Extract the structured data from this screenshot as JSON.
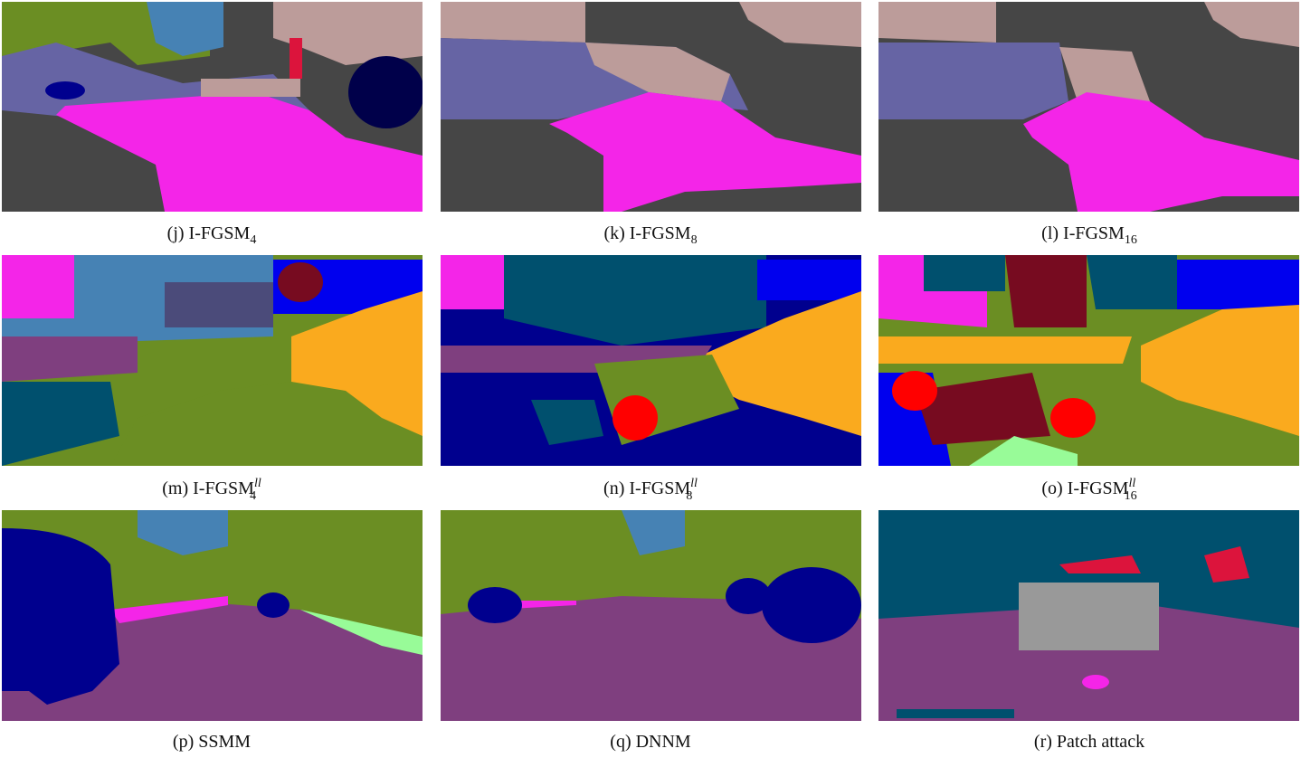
{
  "figure": {
    "panels": [
      {
        "label": "(j) I-FGSM",
        "sub": "4"
      },
      {
        "label": "(k) I-FGSM",
        "sub": "8"
      },
      {
        "label": "(l) I-FGSM",
        "sub": "16"
      },
      {
        "label": "(m) I-FGSM",
        "sup": "ll",
        "sub": "4"
      },
      {
        "label": "(n) I-FGSM",
        "sup": "ll",
        "sub": "8"
      },
      {
        "label": "(o) I-FGSM",
        "sup": "ll",
        "sub": "16"
      },
      {
        "label": "(p) SSMM"
      },
      {
        "label": "(q) DNNM"
      },
      {
        "label": "(r) Patch attack"
      }
    ]
  }
}
